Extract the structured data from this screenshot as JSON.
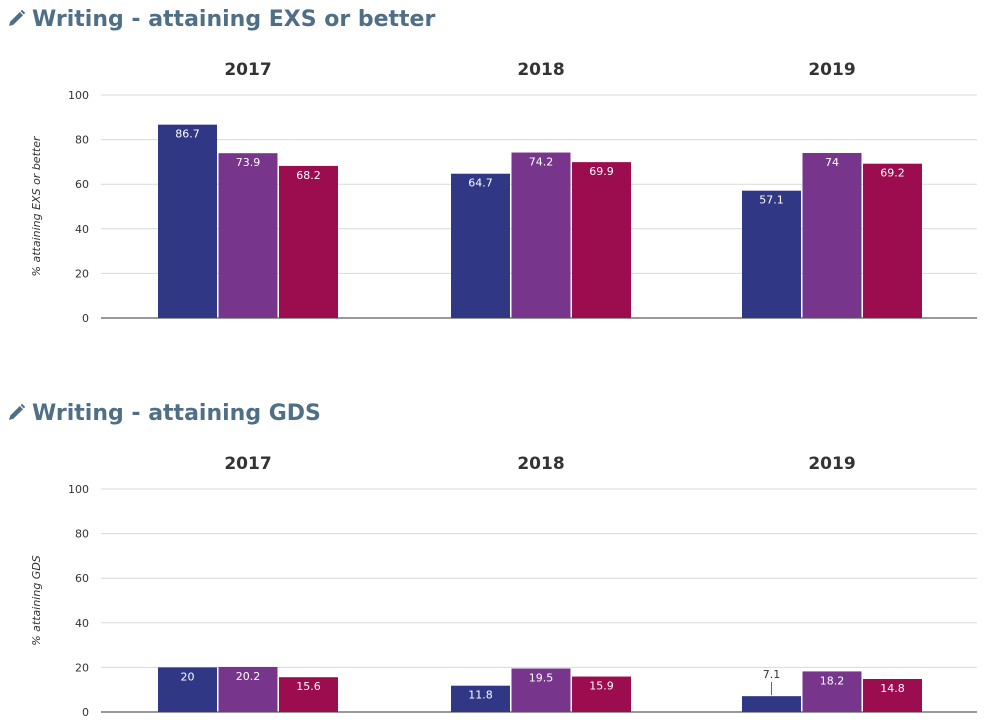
{
  "charts": [
    {
      "id": "exs",
      "heading": "Writing - attaining EXS or better",
      "chart_data": {
        "type": "bar",
        "title": "Writing - attaining EXS or better",
        "xlabel": "",
        "ylabel": "% attaining EXS or better",
        "ylim": [
          0,
          100
        ],
        "yticks": [
          0,
          20,
          40,
          60,
          80,
          100
        ],
        "categories": [
          "2017",
          "2018",
          "2019"
        ],
        "series": [
          {
            "name": "series-1",
            "color": "#303785",
            "values": [
              86.7,
              64.7,
              57.1
            ]
          },
          {
            "name": "series-2",
            "color": "#77368c",
            "values": [
              73.9,
              74.2,
              74
            ]
          },
          {
            "name": "series-3",
            "color": "#9b0d4e",
            "values": [
              68.2,
              69.9,
              69.2
            ]
          }
        ],
        "grid": true,
        "legend": "none"
      }
    },
    {
      "id": "gds",
      "heading": "Writing - attaining GDS",
      "chart_data": {
        "type": "bar",
        "title": "Writing - attaining GDS",
        "xlabel": "",
        "ylabel": "% attaining GDS",
        "ylim": [
          0,
          100
        ],
        "yticks": [
          0,
          20,
          40,
          60,
          80,
          100
        ],
        "categories": [
          "2017",
          "2018",
          "2019"
        ],
        "series": [
          {
            "name": "series-1",
            "color": "#303785",
            "values": [
              20,
              11.8,
              7.1
            ]
          },
          {
            "name": "series-2",
            "color": "#77368c",
            "values": [
              20.2,
              19.5,
              18.2
            ]
          },
          {
            "name": "series-3",
            "color": "#9b0d4e",
            "values": [
              15.6,
              15.9,
              14.8
            ]
          }
        ],
        "grid": true,
        "legend": "none"
      }
    }
  ]
}
